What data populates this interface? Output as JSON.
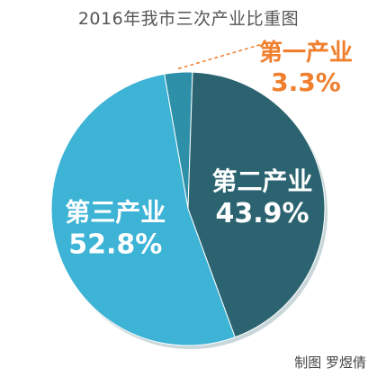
{
  "title": "2016年我市三次产业比重图",
  "credit": "制图  罗煜倩",
  "chart_data": {
    "type": "pie",
    "title": "2016年我市三次产业比重图",
    "slices": [
      {
        "name": "第一产业",
        "value": 3.3,
        "label": "3.3%",
        "color": "#2e8fa8",
        "label_color": "#f07f2e"
      },
      {
        "name": "第二产业",
        "value": 43.9,
        "label": "43.9%",
        "color": "#2b6470",
        "label_color": "#ffffff"
      },
      {
        "name": "第三产业",
        "value": 52.8,
        "label": "52.8%",
        "color": "#3db3d6",
        "label_color": "#ffffff"
      }
    ],
    "legend": "none"
  }
}
